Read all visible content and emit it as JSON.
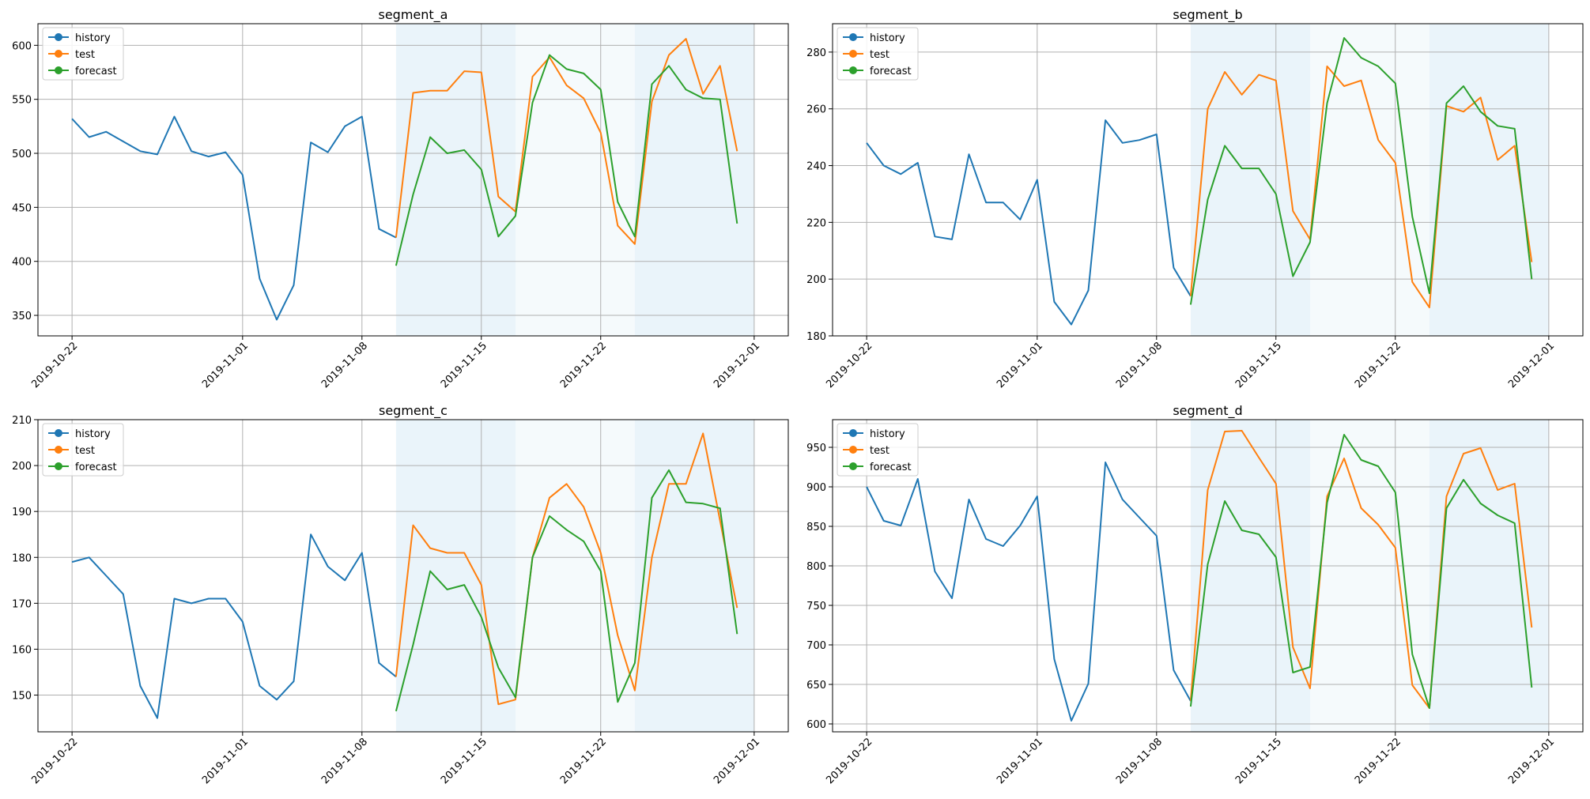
{
  "figure": {
    "legend_placement": "upper-left",
    "grid": true,
    "shaded_regions_note": "alternating light-blue vertical bands over the test/forecast horizon"
  },
  "colors": {
    "history": "#1f77b4",
    "test": "#ff7f0e",
    "forecast": "#2ca02c",
    "band": "#d6eaf5",
    "grid": "#b0b0b0"
  },
  "x_ticks": [
    "2019-10-22",
    "2019-11-01",
    "2019-11-08",
    "2019-11-15",
    "2019-11-22",
    "2019-12-01"
  ],
  "shade_bands": [
    {
      "start": "2019-11-10",
      "end": "2019-11-17",
      "strength": "dark"
    },
    {
      "start": "2019-11-17",
      "end": "2019-11-24",
      "strength": "light"
    },
    {
      "start": "2019-11-24",
      "end": "2019-12-01",
      "strength": "dark"
    }
  ],
  "chart_data": [
    {
      "type": "line",
      "title": "segment_a",
      "x_range": [
        "2019-10-20",
        "2019-12-03"
      ],
      "ylim": [
        331,
        620
      ],
      "y_ticks": [
        350,
        400,
        450,
        500,
        550,
        600
      ],
      "series": [
        {
          "name": "history",
          "start": "2019-10-22",
          "values": [
            532,
            515,
            520,
            511,
            502,
            499,
            534,
            502,
            497,
            501,
            480,
            384,
            346,
            378,
            510,
            501,
            525,
            534,
            430,
            422
          ]
        },
        {
          "name": "test",
          "start": "2019-11-10",
          "values": [
            422,
            556,
            558,
            558,
            576,
            575,
            460,
            446,
            571,
            589,
            563,
            551,
            519,
            433,
            416,
            548,
            591,
            606,
            555,
            581,
            502
          ]
        },
        {
          "name": "forecast",
          "start": "2019-11-10",
          "values": [
            396,
            462,
            515,
            500,
            503,
            485,
            423,
            442,
            547,
            591,
            578,
            574,
            559,
            455,
            423,
            564,
            581,
            559,
            551,
            550,
            435
          ]
        }
      ]
    },
    {
      "type": "line",
      "title": "segment_b",
      "x_range": [
        "2019-10-20",
        "2019-12-03"
      ],
      "ylim": [
        180,
        290
      ],
      "y_ticks": [
        180,
        200,
        220,
        240,
        260,
        280
      ],
      "series": [
        {
          "name": "history",
          "start": "2019-10-22",
          "values": [
            248,
            240,
            237,
            241,
            215,
            214,
            244,
            227,
            227,
            221,
            235,
            192,
            184,
            196,
            256,
            248,
            249,
            251,
            204,
            194
          ]
        },
        {
          "name": "test",
          "start": "2019-11-10",
          "values": [
            194,
            260,
            273,
            265,
            272,
            270,
            224,
            214,
            275,
            268,
            270,
            249,
            241,
            199,
            190,
            261,
            259,
            264,
            242,
            247,
            206
          ]
        },
        {
          "name": "forecast",
          "start": "2019-11-10",
          "values": [
            191,
            228,
            247,
            239,
            239,
            230,
            201,
            213,
            262,
            285,
            278,
            275,
            269,
            222,
            195,
            262,
            268,
            259,
            254,
            253,
            200
          ]
        }
      ]
    },
    {
      "type": "line",
      "title": "segment_c",
      "x_range": [
        "2019-10-20",
        "2019-12-03"
      ],
      "ylim": [
        142,
        210
      ],
      "y_ticks": [
        150,
        160,
        170,
        180,
        190,
        200,
        210
      ],
      "series": [
        {
          "name": "history",
          "start": "2019-10-22",
          "values": [
            179,
            180,
            176,
            172,
            152,
            145,
            171,
            170,
            171,
            171,
            166,
            152,
            149,
            153,
            185,
            178,
            175,
            181,
            157,
            154
          ]
        },
        {
          "name": "test",
          "start": "2019-11-10",
          "values": [
            154,
            187,
            182,
            181,
            181,
            174,
            148,
            149,
            180,
            193,
            196,
            191,
            181,
            163,
            151,
            180,
            196,
            196,
            207,
            188,
            169
          ]
        },
        {
          "name": "forecast",
          "start": "2019-11-10",
          "values": [
            146.5,
            161,
            177,
            173,
            174,
            167,
            156,
            149.5,
            180,
            189,
            186,
            183.5,
            177,
            148.5,
            157,
            193,
            199,
            192,
            191.7,
            190.7,
            163.3
          ]
        }
      ]
    },
    {
      "type": "line",
      "title": "segment_d",
      "x_range": [
        "2019-10-20",
        "2019-12-03"
      ],
      "ylim": [
        590,
        985
      ],
      "y_ticks": [
        600,
        650,
        700,
        750,
        800,
        850,
        900,
        950
      ],
      "series": [
        {
          "name": "history",
          "start": "2019-10-22",
          "values": [
            900,
            857,
            851,
            910,
            793,
            759,
            884,
            834,
            825,
            851,
            888,
            682,
            604,
            651,
            931,
            884,
            861,
            838,
            668,
            629
          ]
        },
        {
          "name": "test",
          "start": "2019-11-10",
          "values": [
            629,
            896,
            970,
            971,
            937,
            904,
            697,
            645,
            888,
            936,
            873,
            852,
            823,
            649,
            620,
            888,
            942,
            949,
            896,
            904,
            722
          ]
        },
        {
          "name": "forecast",
          "start": "2019-11-10",
          "values": [
            622,
            802,
            882,
            845,
            840,
            811,
            665,
            672,
            880,
            966,
            934,
            926,
            893,
            688,
            620,
            873,
            909,
            879,
            864,
            854,
            646
          ]
        }
      ]
    }
  ]
}
